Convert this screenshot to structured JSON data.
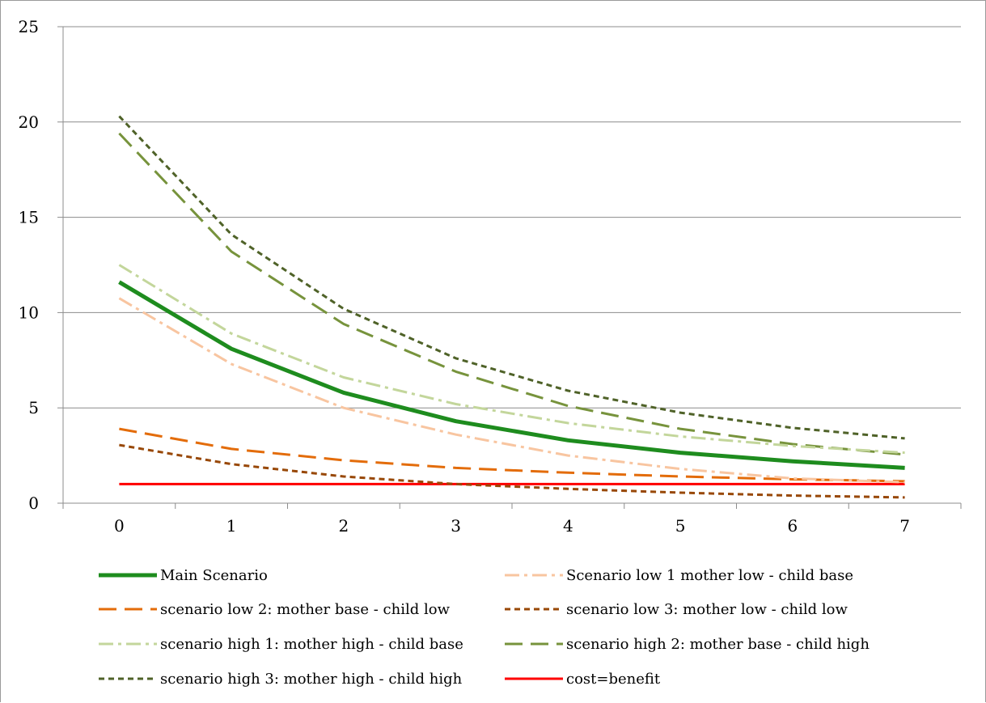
{
  "chart_data": {
    "type": "line",
    "title": "",
    "xlabel": "",
    "ylabel": "",
    "x": [
      0,
      1,
      2,
      3,
      4,
      5,
      6,
      7
    ],
    "xlim": [
      -0.5,
      7.5
    ],
    "ylim": [
      0,
      25
    ],
    "yticks": [
      0,
      5,
      10,
      15,
      20,
      25
    ],
    "xticks": [
      0,
      1,
      2,
      3,
      4,
      5,
      6,
      7
    ],
    "grid": "horizontal",
    "legend_position": "bottom",
    "series": [
      {
        "name": "Main Scenario",
        "color": "#1e8c1e",
        "dash": "solid",
        "width": 5,
        "values": [
          11.6,
          8.1,
          5.8,
          4.3,
          3.3,
          2.65,
          2.2,
          1.85
        ]
      },
      {
        "name": "Scenario low 1 mother low - child base",
        "color": "#f8c5a0",
        "dash": "dashdot",
        "width": 3,
        "values": [
          10.75,
          7.3,
          5.0,
          3.6,
          2.5,
          1.8,
          1.3,
          1.1
        ]
      },
      {
        "name": "scenario low 2: mother base - child low",
        "color": "#e36c0a",
        "dash": "longdash",
        "width": 3,
        "values": [
          3.9,
          2.85,
          2.25,
          1.85,
          1.6,
          1.4,
          1.25,
          1.15
        ]
      },
      {
        "name": "scenario low 3: mother low - child low",
        "color": "#984807",
        "dash": "dotted",
        "width": 3,
        "values": [
          3.05,
          2.05,
          1.4,
          1.0,
          0.75,
          0.55,
          0.4,
          0.3
        ]
      },
      {
        "name": "scenario high 1: mother high - child base",
        "color": "#c3d69b",
        "dash": "dashdot",
        "width": 3,
        "values": [
          12.5,
          8.9,
          6.6,
          5.2,
          4.2,
          3.5,
          3.0,
          2.65
        ]
      },
      {
        "name": "scenario high 2: mother base - child high",
        "color": "#77933c",
        "dash": "longdash",
        "width": 3,
        "values": [
          19.4,
          13.2,
          9.4,
          6.9,
          5.1,
          3.9,
          3.1,
          2.55
        ]
      },
      {
        "name": "scenario high 3: mother high - child high",
        "color": "#4f6228",
        "dash": "dotted",
        "width": 3,
        "values": [
          20.3,
          14.1,
          10.2,
          7.6,
          5.9,
          4.75,
          3.95,
          3.4
        ]
      },
      {
        "name": "cost=benefit",
        "color": "#ff0000",
        "dash": "solid",
        "width": 3,
        "values": [
          1,
          1,
          1,
          1,
          1,
          1,
          1,
          1
        ]
      }
    ]
  }
}
